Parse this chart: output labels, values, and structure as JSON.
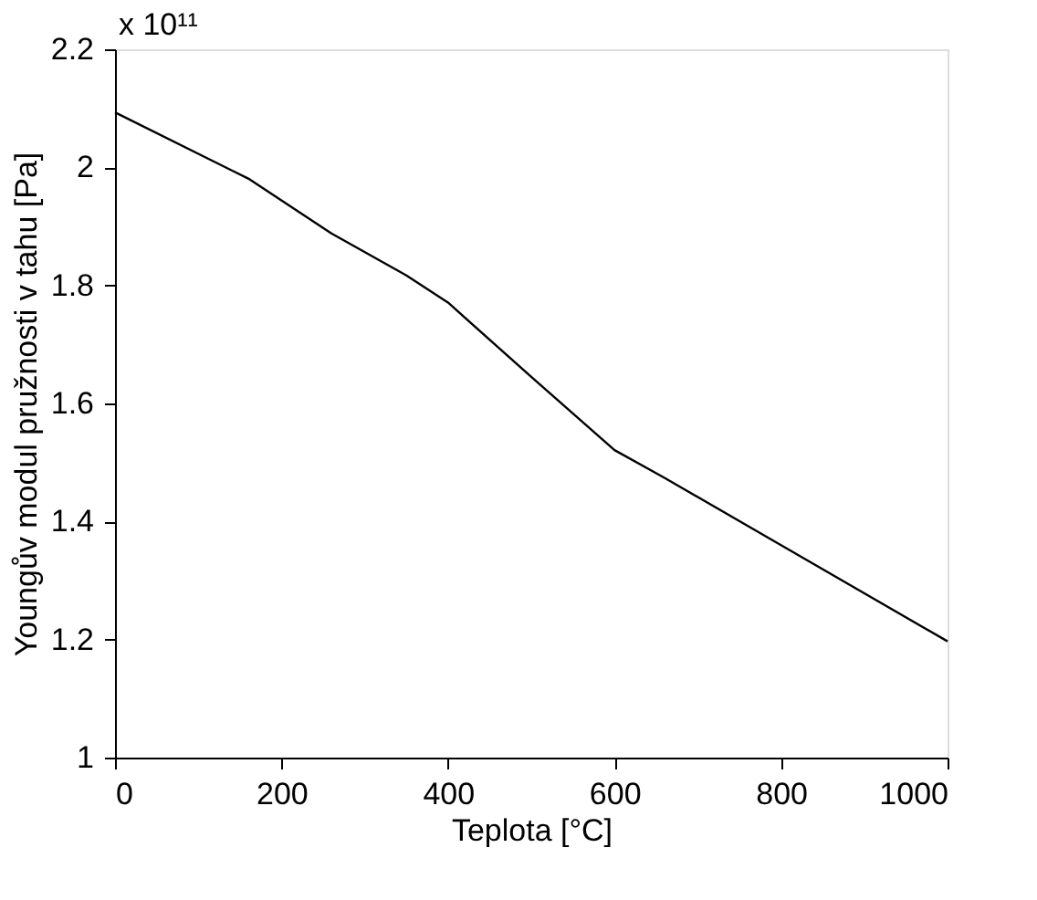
{
  "chart_data": {
    "type": "line",
    "xlabel": "Teplota [°C]",
    "ylabel": "Youngův modul pružnosti v tahu [Pa]",
    "annotations": [
      "x 10¹¹"
    ],
    "series": [
      {
        "color": "#000000",
        "x": [
          0,
          160,
          260,
          350,
          400,
          500,
          600,
          660,
          800,
          1000
        ],
        "values": [
          2.093,
          1.981,
          1.888,
          1.817,
          1.771,
          1.645,
          1.521,
          1.474,
          1.36,
          1.197
        ]
      }
    ],
    "xlim": [
      0,
      1000
    ],
    "xticks": [
      0,
      200,
      400,
      600,
      800,
      1000
    ],
    "ylim": [
      1,
      2.2
    ],
    "yticks": [
      1,
      1.2,
      1.4,
      1.6,
      1.8,
      2,
      2.2
    ],
    "grid": false,
    "legend": false,
    "marker": "none",
    "line_style": "solid"
  }
}
